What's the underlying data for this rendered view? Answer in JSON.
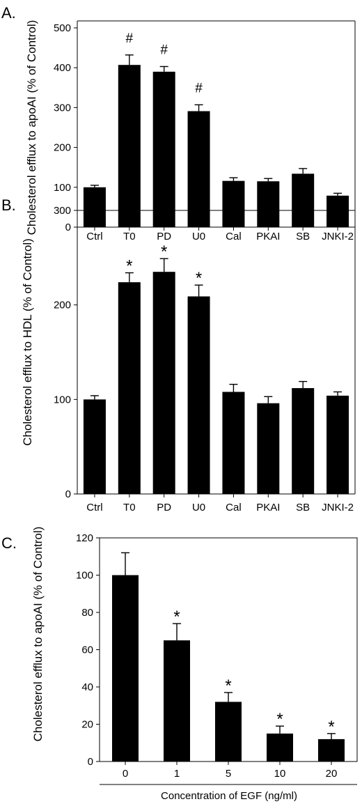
{
  "chart_data": [
    {
      "type": "bar",
      "panel_label": "A.",
      "categories": [
        "Ctrl",
        "T0",
        "PD",
        "U0",
        "Cal",
        "PKAI",
        "SB",
        "JNKI-2"
      ],
      "values": [
        100,
        407,
        390,
        291,
        116,
        115,
        134,
        79
      ],
      "errors": [
        5,
        25,
        13,
        16,
        8,
        7,
        13,
        6
      ],
      "annotations": [
        "",
        "#",
        "#",
        "#",
        "",
        "",
        "",
        ""
      ],
      "ylabel": "Cholesterol efflux to apoAI (% of Control)",
      "xlabel": "",
      "ylim": [
        0,
        500
      ],
      "yticks": [
        0,
        100,
        200,
        300,
        400,
        500
      ],
      "grid": false
    },
    {
      "type": "bar",
      "panel_label": "B.",
      "categories": [
        "Ctrl",
        "T0",
        "PD",
        "U0",
        "Cal",
        "PKAI",
        "SB",
        "JNKI-2"
      ],
      "values": [
        100,
        224,
        235,
        209,
        108,
        96,
        112,
        104
      ],
      "errors": [
        4,
        10,
        14,
        12,
        8,
        7,
        7,
        4
      ],
      "annotations": [
        "",
        "*",
        "*",
        "*",
        "",
        "",
        "",
        ""
      ],
      "ylabel": "Cholesterol efflux to HDL (% of Control)",
      "xlabel": "",
      "ylim": [
        0,
        300
      ],
      "yticks": [
        0,
        100,
        200,
        300
      ],
      "grid": false
    },
    {
      "type": "bar",
      "panel_label": "C.",
      "categories": [
        "0",
        "1",
        "5",
        "10",
        "20"
      ],
      "values": [
        100,
        65,
        32,
        15,
        12
      ],
      "errors": [
        12,
        9,
        5,
        4,
        3
      ],
      "annotations": [
        "",
        "*",
        "*",
        "*",
        "*"
      ],
      "ylabel": "Cholesterol efflux to apoAI (% of Control)",
      "xlabel": "Concentration of EGF (ng/ml)",
      "ylim": [
        0,
        120
      ],
      "yticks": [
        0,
        20,
        40,
        60,
        80,
        100,
        120
      ],
      "grid": false
    }
  ]
}
